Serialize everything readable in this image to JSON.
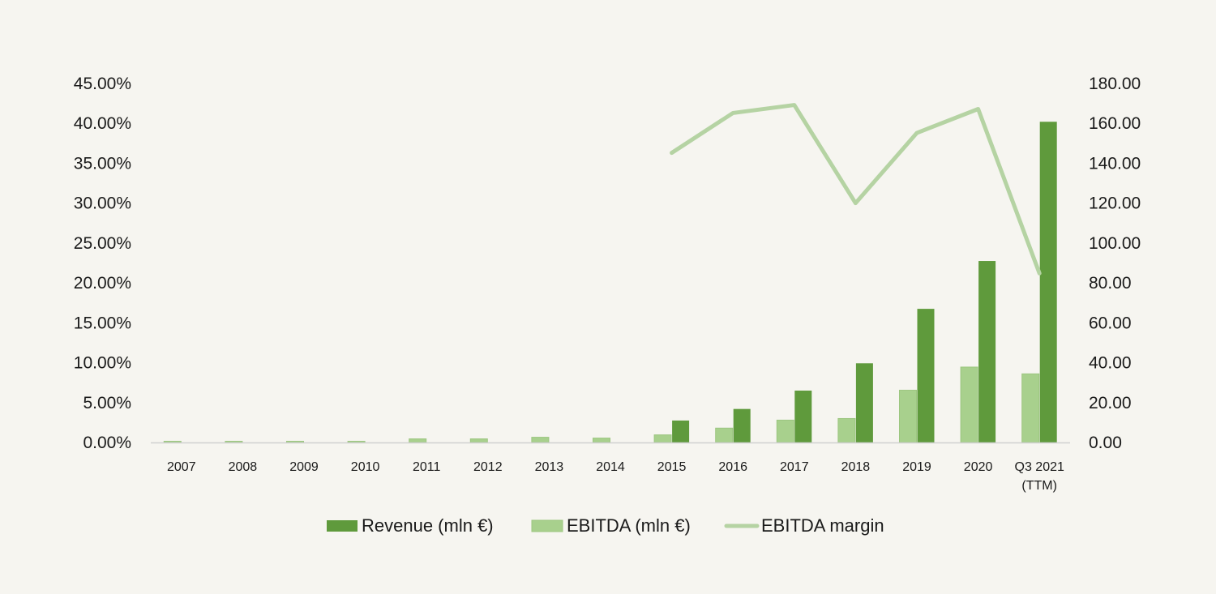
{
  "colors": {
    "background": "#f6f5f0",
    "revenue": "#5f9a3c",
    "ebitda": "#a8d08d",
    "margin": "#b5d3a3",
    "axis": "#d0d0d0"
  },
  "chart_data": {
    "type": "bar",
    "categories": [
      "2007",
      "2008",
      "2009",
      "2010",
      "2011",
      "2012",
      "2013",
      "2014",
      "2015",
      "2016",
      "2017",
      "2018",
      "2019",
      "2020",
      "Q3 2021\n(TTM)"
    ],
    "series": [
      {
        "name": "Revenue (mln €)",
        "type": "bar",
        "axis": "right",
        "values": [
          0,
          0,
          0,
          0,
          0,
          0,
          0,
          0,
          11,
          16.8,
          26,
          39.7,
          67,
          91,
          160.8
        ]
      },
      {
        "name": "EBITDA (mln €)",
        "type": "bar",
        "axis": "right",
        "values": [
          0.6,
          0.6,
          0.6,
          0.6,
          1.8,
          1.8,
          2.6,
          2.2,
          3.8,
          7.2,
          11.2,
          12,
          26.2,
          37.8,
          34.4
        ]
      },
      {
        "name": "EBITDA margin",
        "type": "line",
        "axis": "left",
        "values": [
          null,
          null,
          null,
          null,
          null,
          null,
          null,
          null,
          36.3,
          41.3,
          42.3,
          30,
          38.8,
          41.8,
          21.2
        ]
      }
    ],
    "y_left": {
      "range": [
        0,
        45
      ],
      "ticks": [
        "0.00%",
        "5.00%",
        "10.00%",
        "15.00%",
        "20.00%",
        "25.00%",
        "30.00%",
        "35.00%",
        "40.00%",
        "45.00%"
      ]
    },
    "y_right": {
      "range": [
        0,
        180
      ],
      "ticks": [
        "0.00",
        "20.00",
        "40.00",
        "60.00",
        "80.00",
        "100.00",
        "120.00",
        "140.00",
        "160.00",
        "180.00"
      ]
    },
    "grid": false,
    "legend_position": "bottom"
  }
}
